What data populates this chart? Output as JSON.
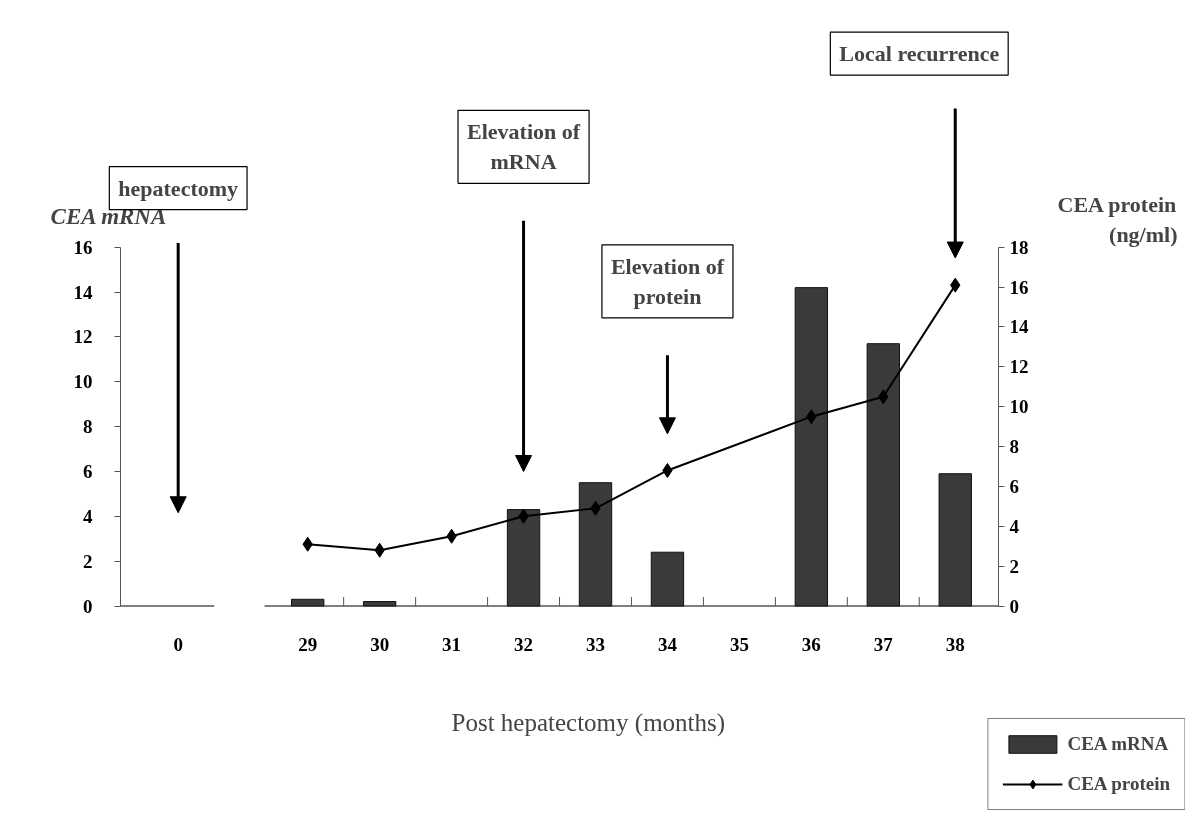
{
  "chart_data": {
    "type": "bar",
    "xlabel": "Post hepatectomy (months)",
    "ylabel": "CEA mRNA",
    "y2label": "CEA protein (ng/ml)",
    "categories": [
      "0",
      "29",
      "30",
      "31",
      "32",
      "33",
      "34",
      "35",
      "36",
      "37",
      "38"
    ],
    "series": [
      {
        "name": "CEA mRNA",
        "color": "#3a3a3a",
        "values": [
          null,
          0.3,
          0.2,
          null,
          4.3,
          5.5,
          2.4,
          null,
          14.2,
          11.7,
          5.9
        ]
      },
      {
        "name": "CEA protein",
        "type": "line",
        "axis": "y2",
        "color": "#000000",
        "marker": "diamond",
        "values": [
          null,
          3.1,
          2.8,
          3.5,
          4.5,
          4.9,
          6.8,
          null,
          9.5,
          10.5,
          16.1
        ]
      }
    ],
    "ylim": [
      0,
      16
    ],
    "yticks": [
      0,
      2,
      4,
      6,
      8,
      10,
      12,
      14,
      16
    ],
    "y2lim": [
      0,
      18
    ],
    "y2ticks": [
      0,
      2,
      4,
      6,
      8,
      10,
      12,
      14,
      16,
      18
    ],
    "annotations": [
      "hepatectomy",
      "Elevation of\nmRNA",
      "Elevation of\nprotein",
      "Local recurrence"
    ],
    "grid": false,
    "legend": "bottom right"
  }
}
